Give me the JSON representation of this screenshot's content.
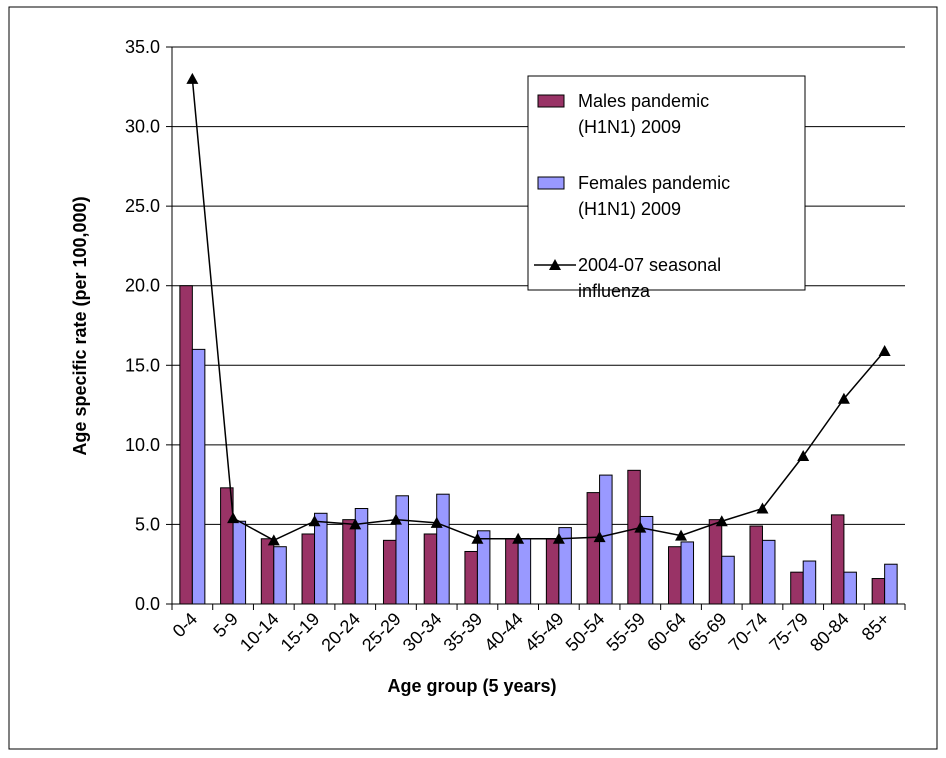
{
  "chart_data": {
    "type": "bar",
    "x_label": "Age group (5 years)",
    "y_label": "Age specific rate (per 100,000)",
    "categories": [
      "0-4",
      "5-9",
      "10-14",
      "15-19",
      "20-24",
      "25-29",
      "30-34",
      "35-39",
      "40-44",
      "45-49",
      "50-54",
      "55-59",
      "60-64",
      "65-69",
      "70-74",
      "75-79",
      "80-84",
      "85+"
    ],
    "series": [
      {
        "name": "Males pandemic (H1N1) 2009",
        "type": "bar",
        "color": "#993366",
        "values": [
          20.0,
          7.3,
          4.1,
          4.4,
          5.3,
          4.0,
          4.4,
          3.3,
          4.1,
          4.1,
          7.0,
          8.4,
          3.6,
          5.3,
          4.9,
          2.0,
          5.6,
          1.6
        ]
      },
      {
        "name": "Females pandemic (H1N1) 2009",
        "type": "bar",
        "color": "#9999ff",
        "values": [
          16.0,
          5.2,
          3.6,
          5.7,
          6.0,
          6.8,
          6.9,
          4.6,
          4.1,
          4.8,
          8.1,
          5.5,
          3.9,
          3.0,
          4.0,
          2.7,
          2.0,
          2.5
        ]
      },
      {
        "name": "2004-07 seasonal influenza",
        "type": "line",
        "color": "#000000",
        "values": [
          33.0,
          5.4,
          4.0,
          5.2,
          5.0,
          5.3,
          5.1,
          4.1,
          4.1,
          4.1,
          4.2,
          4.8,
          4.3,
          5.2,
          6.0,
          9.3,
          12.9,
          15.9
        ]
      }
    ],
    "ylim": [
      0,
      35
    ],
    "yticks": [
      {
        "value": 0,
        "label": "0.0"
      },
      {
        "value": 5,
        "label": "5.0"
      },
      {
        "value": 10,
        "label": "10.0"
      },
      {
        "value": 15,
        "label": "15.0"
      },
      {
        "value": 20,
        "label": "20.0"
      },
      {
        "value": 25,
        "label": "25.0"
      },
      {
        "value": 30,
        "label": "30.0"
      },
      {
        "value": 35,
        "label": "35.0"
      }
    ],
    "grid": true,
    "legend": "upper-right"
  }
}
